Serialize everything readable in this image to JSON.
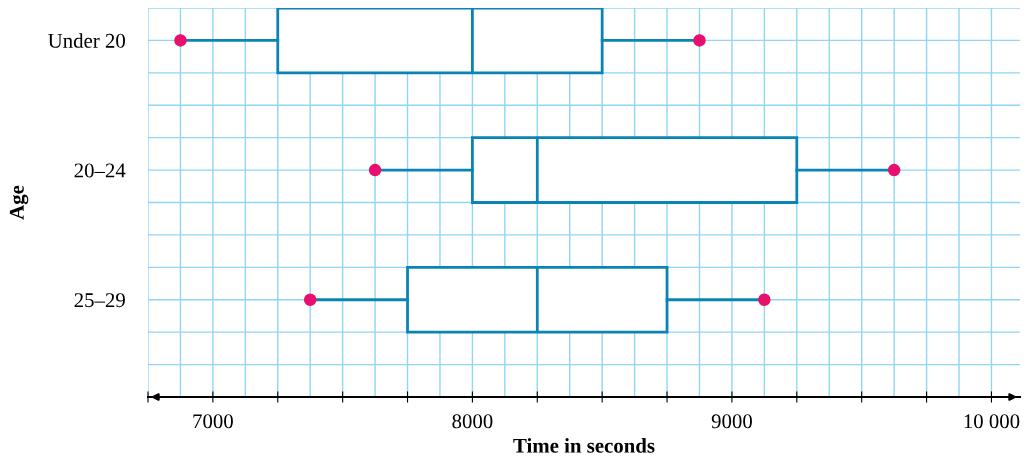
{
  "chart_data": {
    "type": "box",
    "orientation": "horizontal",
    "xlabel": "Time in seconds",
    "ylabel": "Age",
    "categories": [
      "Under 20",
      "20–24",
      "25–29"
    ],
    "series": [
      {
        "color": "#0a84b4",
        "boxes": [
          {
            "low": 6875,
            "q1": 7250,
            "median": 8000,
            "q3": 8500,
            "high": 8875
          },
          {
            "low": 7625,
            "q1": 8000,
            "median": 8250,
            "q3": 9250,
            "high": 9625
          },
          {
            "low": 7375,
            "q1": 7750,
            "median": 8250,
            "q3": 8750,
            "high": 9125
          }
        ]
      },
      {
        "type": "scatter",
        "color": "#e8106e",
        "marker": "circle",
        "x": [
          "Under 20",
          "Under 20",
          "20–24",
          "20–24",
          "25–29",
          "25–29"
        ],
        "values": [
          6875,
          8875,
          7625,
          9625,
          7375,
          9125
        ]
      }
    ],
    "xlim": [
      6750,
      10110
    ],
    "xticks": [
      {
        "value": 6750,
        "label": null
      },
      7000,
      {
        "value": 7250,
        "label": null
      },
      {
        "value": 7500,
        "label": null
      },
      {
        "value": 7750,
        "label": null
      },
      8000,
      {
        "value": 8250,
        "label": null
      },
      {
        "value": 8500,
        "label": null
      },
      {
        "value": 8750,
        "label": null
      },
      9000,
      {
        "value": 9250,
        "label": null
      },
      {
        "value": 9500,
        "label": null
      },
      {
        "value": 9750,
        "label": null
      },
      {
        "value": 10000,
        "label": "10 000"
      }
    ],
    "grid": true
  }
}
